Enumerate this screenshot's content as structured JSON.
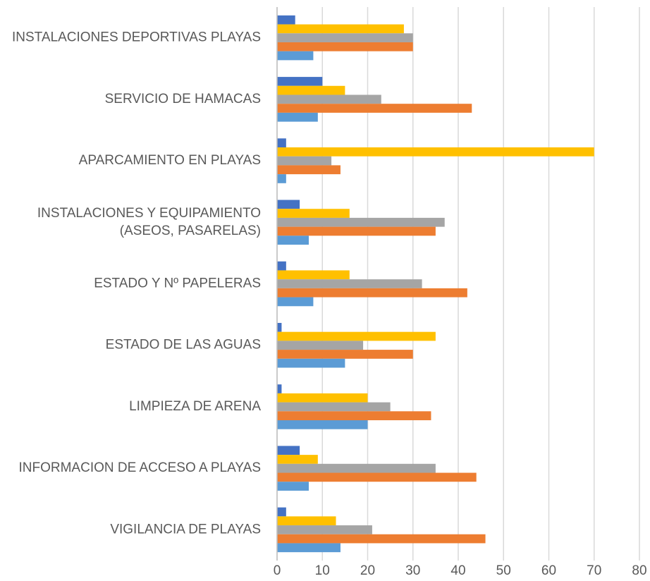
{
  "chart_data": {
    "type": "hbar",
    "categories": [
      "INSTALACIONES DEPORTIVAS PLAYAS",
      "SERVICIO DE HAMACAS",
      "APARCAMIENTO EN PLAYAS",
      "INSTALACIONES Y EQUIPAMIENTO (ASEOS, PASARELAS)",
      "ESTADO Y Nº PAPELERAS",
      "ESTADO DE LAS AGUAS",
      "LIMPIEZA DE ARENA",
      "INFORMACION DE ACCESO A PLAYAS",
      "VIGILANCIA DE PLAYAS"
    ],
    "series": [
      {
        "color": "#4472c4",
        "values": [
          4,
          10,
          2,
          5,
          2,
          1,
          1,
          5,
          2
        ]
      },
      {
        "color": "#ffc000",
        "values": [
          28,
          15,
          70,
          16,
          16,
          35,
          20,
          9,
          13
        ]
      },
      {
        "color": "#a5a5a5",
        "values": [
          30,
          23,
          12,
          37,
          32,
          19,
          25,
          35,
          21
        ]
      },
      {
        "color": "#ed7d31",
        "values": [
          30,
          43,
          14,
          35,
          42,
          30,
          34,
          44,
          46
        ]
      },
      {
        "color": "#5b9bd5",
        "values": [
          8,
          9,
          2,
          7,
          8,
          15,
          20,
          7,
          14
        ]
      }
    ],
    "xlim": [
      0,
      80
    ],
    "xticks": [
      0,
      10,
      20,
      30,
      40,
      50,
      60,
      70,
      80
    ],
    "grid": true
  }
}
